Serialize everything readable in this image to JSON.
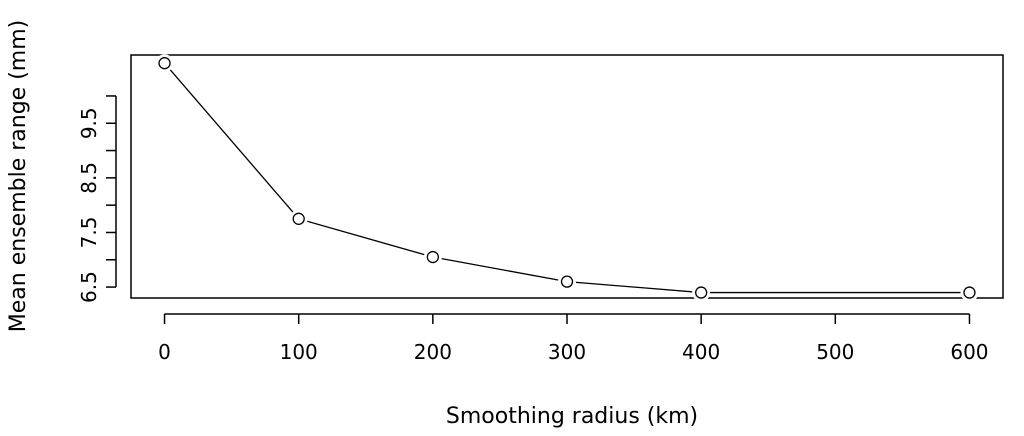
{
  "chart_data": {
    "type": "line",
    "title": "",
    "xlabel": "Smoothing radius (km)",
    "ylabel": "Mean ensemble range (mm)",
    "x": [
      0,
      100,
      200,
      300,
      400,
      600
    ],
    "series": [
      {
        "values": [
          10.6,
          7.75,
          7.05,
          6.6,
          6.4,
          6.4
        ]
      }
    ],
    "xlim": [
      -25,
      625
    ],
    "ylim": [
      6.3,
      10.75
    ],
    "xticks": [
      0,
      100,
      200,
      300,
      400,
      500,
      600
    ],
    "xtick_labels": [
      "0",
      "100",
      "200",
      "300",
      "400",
      "500",
      "600"
    ],
    "yticks": [
      6.5,
      7,
      7.5,
      8,
      8.5,
      9,
      9.5,
      10
    ],
    "ytick_labels": [
      "6.5",
      "",
      "7.5",
      "",
      "8.5",
      "",
      "9.5",
      ""
    ],
    "marker": "open-circle",
    "grid": false,
    "legend": "none"
  }
}
